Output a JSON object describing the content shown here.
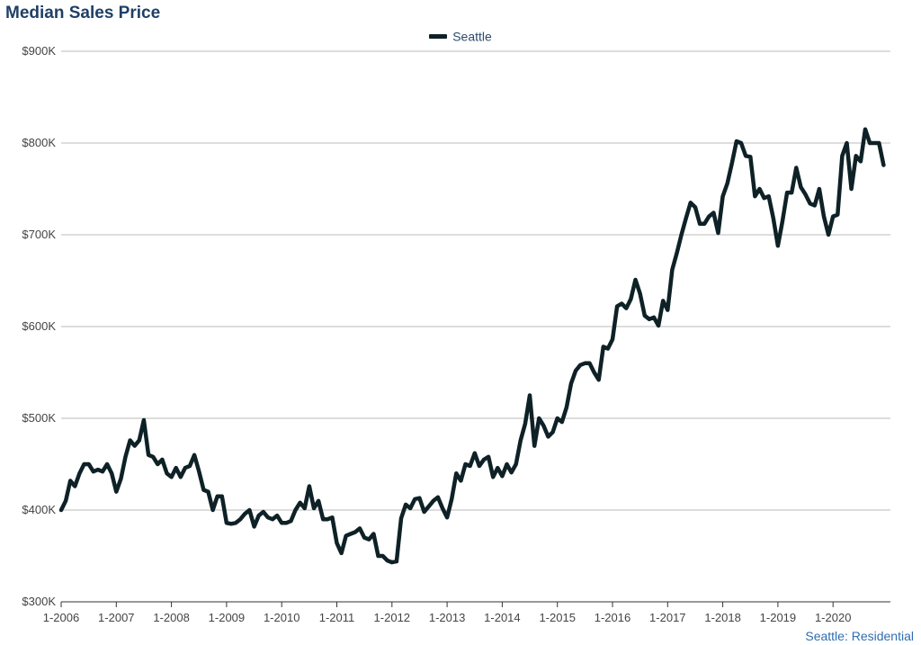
{
  "chart_data": {
    "type": "line",
    "title": "Median Sales Price",
    "legend": {
      "position": "top-center",
      "entries": [
        "Seattle"
      ]
    },
    "footer": "Seattle: Residential",
    "colors": {
      "series": "#0e2126",
      "grid": "#bbbbbb",
      "title": "#1f3f66",
      "footer": "#2f6db0"
    },
    "grid": true,
    "y_axis": {
      "min": 300000,
      "max": 900000,
      "ticks": [
        300000,
        400000,
        500000,
        600000,
        700000,
        800000,
        900000
      ],
      "tick_labels": [
        "$300K",
        "$400K",
        "$500K",
        "$600K",
        "$700K",
        "$800K",
        "$900K"
      ]
    },
    "x_axis": {
      "start": "1-2006",
      "end": "12-2020",
      "tick_labels": [
        "1-2006",
        "1-2007",
        "1-2008",
        "1-2009",
        "1-2010",
        "1-2011",
        "1-2012",
        "1-2013",
        "1-2014",
        "1-2015",
        "1-2016",
        "1-2017",
        "1-2018",
        "1-2019",
        "1-2020"
      ]
    },
    "series": [
      {
        "name": "Seattle",
        "start": "1-2006",
        "values": [
          400000,
          410000,
          432000,
          426000,
          440000,
          450000,
          450000,
          442000,
          444000,
          442000,
          450000,
          440000,
          420000,
          434000,
          458000,
          476000,
          470000,
          476000,
          498000,
          460000,
          458000,
          450000,
          455000,
          440000,
          436000,
          446000,
          436000,
          446000,
          448000,
          460000,
          442000,
          422000,
          420000,
          400000,
          415000,
          415000,
          386000,
          385000,
          386000,
          390000,
          396000,
          400000,
          382000,
          394000,
          398000,
          392000,
          390000,
          394000,
          386000,
          386000,
          388000,
          400000,
          408000,
          402000,
          426000,
          402000,
          410000,
          390000,
          390000,
          392000,
          364000,
          353000,
          372000,
          374000,
          376000,
          380000,
          370000,
          368000,
          374000,
          350000,
          350000,
          345000,
          343000,
          344000,
          391000,
          406000,
          402000,
          412000,
          413000,
          398000,
          404000,
          410000,
          414000,
          402000,
          392000,
          412000,
          440000,
          432000,
          450000,
          448000,
          462000,
          448000,
          455000,
          458000,
          436000,
          446000,
          437000,
          450000,
          441000,
          450000,
          476000,
          494000,
          525000,
          470000,
          500000,
          492000,
          480000,
          485000,
          500000,
          496000,
          512000,
          538000,
          552000,
          558000,
          560000,
          560000,
          550000,
          542000,
          578000,
          576000,
          586000,
          622000,
          625000,
          620000,
          630000,
          651000,
          636000,
          612000,
          608000,
          610000,
          601000,
          628000,
          618000,
          662000,
          680000,
          700000,
          718000,
          735000,
          730000,
          712000,
          712000,
          720000,
          724000,
          702000,
          742000,
          756000,
          778000,
          802000,
          800000,
          786000,
          785000,
          742000,
          750000,
          740000,
          742000,
          718000,
          688000,
          715000,
          746000,
          746000,
          773000,
          752000,
          744000,
          734000,
          732000,
          750000,
          720000,
          700000,
          720000,
          722000,
          786000,
          800000,
          750000,
          786000,
          780000,
          815000,
          800000,
          800000,
          800000,
          776000
        ]
      }
    ]
  }
}
